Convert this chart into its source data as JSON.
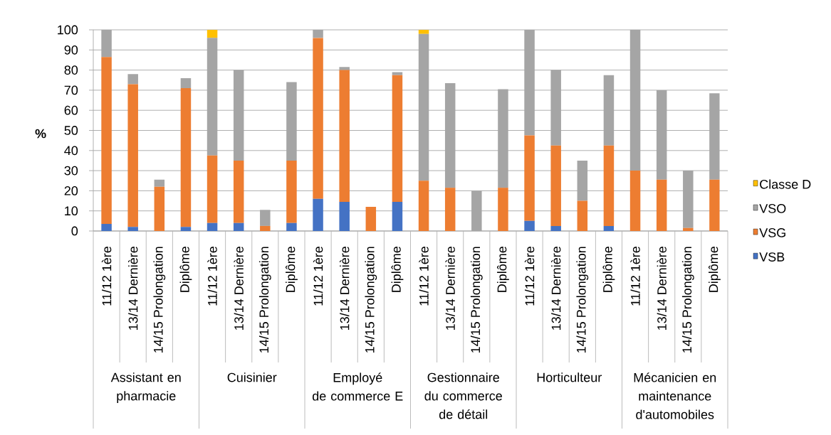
{
  "chart_data": {
    "type": "bar",
    "stacked": true,
    "ylabel": "%",
    "categories": [
      "11/12 1ère",
      "13/14 Dernière",
      "14/15 Prolongation",
      "Diplôme",
      "11/12 1ère",
      "13/14 Dernière",
      "14/15 Prolongation",
      "Diplôme",
      "11/12 1ère",
      "13/14 Dernière",
      "14/15 Prolongation",
      "Diplôme",
      "11/12 1ère",
      "13/14 Dernière",
      "14/15 Prolongation",
      "Diplôme",
      "11/12 1ère",
      "13/14 Dernière",
      "14/15 Prolongation",
      "Diplôme",
      "11/12 1ère",
      "13/14 Dernière",
      "14/15 Prolongation",
      "Diplôme"
    ],
    "annotations": [
      "Assistant en\npharmacie",
      "Cuisinier",
      "Employé\nde commerce E",
      "Gestionnaire\ndu commerce\nde détail",
      "Horticulteur",
      "Mécanicien en\nmaintenance\nd'automobiles"
    ],
    "series": [
      {
        "name": "VSB",
        "color": "#4472c4",
        "values": [
          3.5,
          2,
          0,
          2,
          4,
          4,
          0,
          4,
          16,
          14.5,
          0,
          14.5,
          0,
          0,
          0,
          0,
          5,
          2.5,
          0,
          2.5,
          0,
          0,
          0,
          0
        ]
      },
      {
        "name": "VSG",
        "color": "#ed7d31",
        "values": [
          83,
          71,
          22,
          69,
          33.5,
          31,
          2.5,
          31,
          80,
          65.5,
          12,
          63,
          25,
          21.5,
          0,
          21.5,
          42.5,
          40,
          15,
          40,
          30,
          25.5,
          1.5,
          25.5
        ]
      },
      {
        "name": "VSO",
        "color": "#a5a5a5",
        "values": [
          13.5,
          5,
          3.5,
          5,
          58.5,
          45,
          8,
          39,
          4,
          1.5,
          0,
          1.5,
          73,
          52,
          20,
          49,
          52.5,
          37.5,
          20,
          35,
          70,
          44.5,
          28.5,
          43
        ]
      },
      {
        "name": "Classe D",
        "color": "#ffc000",
        "values": [
          0,
          0,
          0,
          0,
          4,
          0,
          0,
          0,
          0,
          0,
          0,
          0,
          2,
          0,
          0,
          0,
          0,
          0,
          0,
          0,
          0,
          0,
          0,
          0
        ]
      }
    ],
    "ylim": [
      0,
      100
    ],
    "yticks": [
      0,
      10,
      20,
      30,
      40,
      50,
      60,
      70,
      80,
      90,
      100
    ],
    "grid": "y",
    "legend": "right"
  }
}
